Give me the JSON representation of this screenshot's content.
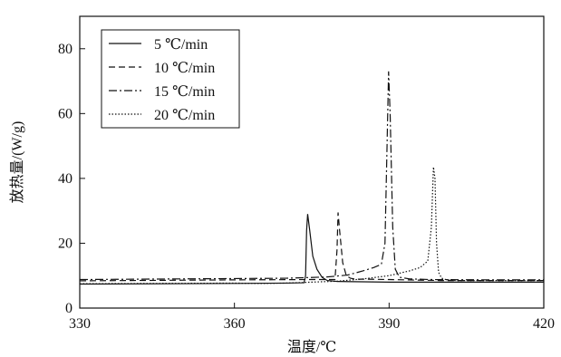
{
  "chart_data": {
    "type": "line",
    "xlabel": "温度/℃",
    "ylabel": "放热量/(W/g)",
    "xlim": [
      330,
      420
    ],
    "ylim": [
      0,
      90
    ],
    "xticks": [
      330,
      360,
      390,
      420
    ],
    "yticks": [
      0,
      20,
      40,
      60,
      80
    ],
    "grid": false,
    "legend_position": "top-left",
    "series": [
      {
        "name": "5 ℃/min",
        "style": "solid",
        "x": [
          330,
          360,
          370,
          373.5,
          373.8,
          374.0,
          374.2,
          374.6,
          375.2,
          376,
          377,
          378,
          380,
          390,
          400,
          420
        ],
        "y": [
          7.4,
          7.6,
          7.7,
          7.8,
          10,
          24,
          29,
          24,
          16,
          12,
          9.5,
          8.5,
          8.2,
          8.0,
          8.0,
          8.0
        ]
      },
      {
        "name": "10 ℃/min",
        "style": "dashed",
        "x": [
          330,
          360,
          375,
          379.5,
          379.9,
          380.1,
          380.4,
          381.0,
          381.7,
          382.5,
          383.5,
          386,
          390,
          400,
          420
        ],
        "y": [
          8.4,
          8.7,
          8.8,
          8.8,
          18,
          29.5,
          24,
          14,
          10,
          9.2,
          8.9,
          8.9,
          8.8,
          8.5,
          8.5
        ]
      },
      {
        "name": "15 ℃/min",
        "style": "dashdot",
        "x": [
          330,
          350,
          370,
          378,
          382,
          385,
          387,
          388.5,
          389.2,
          389.6,
          389.9,
          390.2,
          390.7,
          391.2,
          392,
          394,
          398,
          410,
          420
        ],
        "y": [
          8.8,
          9.0,
          9.2,
          9.6,
          10.2,
          11.5,
          12.5,
          13.5,
          20,
          50,
          73,
          60,
          25,
          12,
          9.5,
          9.0,
          8.8,
          8.7,
          8.7
        ]
      },
      {
        "name": "20 ℃/min",
        "style": "dotted",
        "x": [
          330,
          360,
          365,
          370,
          375,
          380,
          385,
          390,
          394,
          396,
          397.5,
          398.2,
          398.6,
          398.9,
          399.2,
          399.6,
          400.2,
          401,
          403,
          420
        ],
        "y": [
          7.5,
          7.7,
          7.6,
          7.7,
          8.0,
          8.3,
          9.0,
          10.0,
          11.5,
          12.5,
          14.5,
          25,
          43.5,
          40,
          20,
          11,
          9.2,
          8.8,
          8.5,
          8.5
        ]
      }
    ]
  }
}
